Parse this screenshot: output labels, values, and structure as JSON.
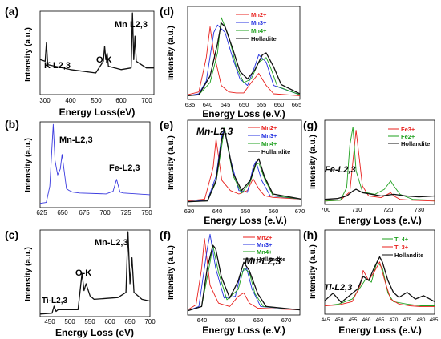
{
  "panels": [
    {
      "letter": "(a)",
      "xlabel": "Energy Loss(eV)",
      "ylabel": "Intensity (a.u.)",
      "ticks": [
        "300",
        "400",
        "500",
        "600",
        "700"
      ],
      "annotations": [
        "K L2,3",
        "O K",
        "Mn L2,3"
      ],
      "legend": []
    },
    {
      "letter": "(b)",
      "xlabel": "",
      "ylabel": "Intensity (a.u.)",
      "ticks": [
        "625",
        "650",
        "675",
        "700",
        "725",
        "750"
      ],
      "annotations": [
        "Mn-L2,3",
        "Fe-L2,3"
      ],
      "legend": []
    },
    {
      "letter": "(c)",
      "xlabel": "Energy Loss (eV)",
      "ylabel": "Intensity (a.u.)",
      "ticks": [
        "450",
        "500",
        "550",
        "600",
        "650",
        "700"
      ],
      "annotations": [
        "Ti-L2,3",
        "O-K",
        "Mn-L2,3"
      ],
      "legend": []
    },
    {
      "letter": "(d)",
      "xlabel": "Energy Loss (e.V.)",
      "ylabel": "Intensity (a.u.)",
      "ticks": [
        "635",
        "640",
        "645",
        "650",
        "655",
        "660",
        "665"
      ],
      "annotations": [],
      "legend": [
        "Mn2+",
        "Mn3+",
        "Mn4+",
        "Holladite"
      ]
    },
    {
      "letter": "(e)",
      "xlabel": "Energy Loss (e.V.)",
      "ylabel": "Intensity (a.u.)",
      "ticks": [
        "630",
        "640",
        "650",
        "660",
        "670"
      ],
      "annotations": [
        "Mn-L2,3"
      ],
      "legend": [
        "Mn2+",
        "Mn3+",
        "Mn4+",
        "Hollandite"
      ]
    },
    {
      "letter": "(f)",
      "xlabel": "Energy Loss (e.V.)",
      "ylabel": "Intensity (a.u.)",
      "ticks": [
        "640",
        "650",
        "660",
        "670"
      ],
      "annotations": [
        "Mn-L2,3"
      ],
      "legend": [
        "Mn2+",
        "Mn3+",
        "Mn4+",
        "Hollandite"
      ]
    },
    {
      "letter": "(g)",
      "xlabel": "Energy Loss (e.V.)",
      "ylabel": "Intensity (a.u.)",
      "ticks": [
        "700",
        "710",
        "720",
        "730"
      ],
      "annotations": [
        "Fe-L2,3"
      ],
      "legend": [
        "Fe3+",
        "Fe2+",
        "Hollandite"
      ]
    },
    {
      "letter": "(h)",
      "xlabel": "Energy Loss (e.V.)",
      "ylabel": "Intensity (a.u.)",
      "ticks": [
        "445",
        "450",
        "455",
        "460",
        "465",
        "470",
        "475",
        "480",
        "485"
      ],
      "annotations": [
        "Ti-L2,3"
      ],
      "legend": [
        "Ti 4+",
        "Ti 3+",
        "Hollandite"
      ]
    }
  ],
  "colors": {
    "red": "#e8201d",
    "blue": "#2431e0",
    "green": "#1ea01e",
    "black": "#111111",
    "bluePanel": "#3a3adf"
  },
  "chart_data": [
    {
      "type": "line",
      "panel": "(a)",
      "xlabel": "Energy Loss(eV)",
      "ylabel": "Intensity (a.u.)",
      "xlim": [
        280,
        730
      ],
      "series": [
        {
          "color": "black",
          "x": [
            280,
            300,
            305,
            310,
            400,
            500,
            530,
            535,
            540,
            545,
            550,
            600,
            640,
            645,
            650,
            655,
            660,
            700,
            730
          ],
          "y": [
            0.42,
            0.4,
            0.62,
            0.36,
            0.3,
            0.26,
            0.4,
            0.58,
            0.42,
            0.5,
            0.34,
            0.3,
            0.32,
            0.98,
            0.42,
            0.7,
            0.4,
            0.32,
            0.32
          ]
        }
      ]
    },
    {
      "type": "line",
      "panel": "(b)",
      "xlabel": "",
      "ylabel": "Intensity (a.u.)",
      "xlim": [
        625,
        750
      ],
      "series": [
        {
          "color": "bluePanel",
          "x": [
            625,
            632,
            636,
            640,
            642,
            645,
            648,
            650,
            655,
            658,
            662,
            670,
            700,
            708,
            712,
            716,
            720,
            750
          ],
          "y": [
            0.05,
            0.06,
            0.25,
            0.97,
            0.55,
            0.38,
            0.45,
            0.62,
            0.22,
            0.2,
            0.18,
            0.17,
            0.16,
            0.19,
            0.33,
            0.18,
            0.17,
            0.15
          ]
        }
      ]
    },
    {
      "type": "line",
      "panel": "(c)",
      "xlabel": "Energy Loss (eV)",
      "ylabel": "Intensity (a.u.)",
      "xlim": [
        425,
        700
      ],
      "series": [
        {
          "color": "black",
          "x": [
            425,
            455,
            460,
            465,
            470,
            520,
            530,
            535,
            540,
            550,
            560,
            620,
            640,
            645,
            650,
            655,
            660,
            680,
            700
          ],
          "y": [
            0.03,
            0.04,
            0.12,
            0.06,
            0.08,
            0.08,
            0.5,
            0.3,
            0.38,
            0.24,
            0.2,
            0.22,
            0.28,
            0.98,
            0.38,
            0.68,
            0.28,
            0.2,
            0.18
          ]
        }
      ]
    },
    {
      "type": "line",
      "panel": "(d)",
      "xlabel": "Energy Loss (e.V.)",
      "ylabel": "Intensity (a.u.)",
      "xlim": [
        635,
        665
      ],
      "series": [
        {
          "name": "Mn2+",
          "color": "red",
          "x": [
            635,
            638,
            640,
            641,
            642,
            644,
            646,
            648,
            650,
            652,
            654,
            656,
            658,
            665
          ],
          "y": [
            0.05,
            0.08,
            0.45,
            0.78,
            0.5,
            0.15,
            0.08,
            0.07,
            0.07,
            0.18,
            0.28,
            0.15,
            0.06,
            0.04
          ]
        },
        {
          "name": "Mn3+",
          "color": "blue",
          "x": [
            635,
            638,
            640,
            642,
            643,
            645,
            647,
            649,
            651,
            653,
            654,
            656,
            658,
            665
          ],
          "y": [
            0.04,
            0.06,
            0.2,
            0.72,
            0.8,
            0.72,
            0.45,
            0.22,
            0.15,
            0.36,
            0.48,
            0.4,
            0.15,
            0.05
          ]
        },
        {
          "name": "Mn4+",
          "color": "green",
          "x": [
            635,
            638,
            641,
            643,
            644,
            646,
            648,
            650,
            652,
            654,
            656,
            657,
            659,
            665
          ],
          "y": [
            0.04,
            0.05,
            0.18,
            0.5,
            0.88,
            0.68,
            0.35,
            0.18,
            0.22,
            0.4,
            0.45,
            0.36,
            0.14,
            0.05
          ]
        },
        {
          "name": "Holladite",
          "color": "black",
          "x": [
            635,
            638,
            641,
            643,
            644,
            645,
            647,
            649,
            651,
            653,
            655,
            656,
            658,
            660,
            665
          ],
          "y": [
            0.04,
            0.05,
            0.25,
            0.6,
            0.82,
            0.78,
            0.55,
            0.3,
            0.22,
            0.32,
            0.48,
            0.5,
            0.35,
            0.16,
            0.06
          ]
        }
      ]
    },
    {
      "type": "line",
      "panel": "(e)",
      "xlabel": "Energy Loss (e.V.)",
      "ylabel": "Intensity (a.u.)",
      "xlim": [
        630,
        670
      ],
      "series": [
        {
          "name": "Mn2+",
          "color": "red",
          "x": [
            630,
            636,
            639,
            640,
            642,
            645,
            648,
            651,
            653,
            655,
            657,
            660,
            670
          ],
          "y": [
            0.06,
            0.08,
            0.45,
            0.78,
            0.3,
            0.18,
            0.14,
            0.18,
            0.32,
            0.2,
            0.12,
            0.1,
            0.08
          ]
        },
        {
          "name": "Mn3+",
          "color": "blue",
          "x": [
            630,
            637,
            640,
            642,
            643,
            645,
            648,
            651,
            653,
            654,
            656,
            659,
            670
          ],
          "y": [
            0.05,
            0.07,
            0.35,
            0.82,
            0.9,
            0.55,
            0.18,
            0.16,
            0.45,
            0.52,
            0.3,
            0.12,
            0.08
          ]
        },
        {
          "name": "Mn4+",
          "color": "green",
          "x": [
            630,
            637,
            640,
            642,
            643,
            644,
            646,
            649,
            652,
            654,
            655,
            657,
            660,
            670
          ],
          "y": [
            0.05,
            0.06,
            0.28,
            0.7,
            0.92,
            0.7,
            0.35,
            0.15,
            0.28,
            0.48,
            0.5,
            0.32,
            0.12,
            0.08
          ]
        },
        {
          "name": "Hollandite",
          "color": "black",
          "x": [
            630,
            637,
            640,
            642,
            643,
            644,
            646,
            649,
            652,
            654,
            655,
            657,
            660,
            670
          ],
          "y": [
            0.05,
            0.06,
            0.3,
            0.78,
            0.88,
            0.72,
            0.38,
            0.18,
            0.3,
            0.5,
            0.55,
            0.34,
            0.14,
            0.08
          ]
        }
      ]
    },
    {
      "type": "line",
      "panel": "(f)",
      "xlabel": "Energy Loss (e.V.)",
      "ylabel": "Intensity (a.u.)",
      "xlim": [
        635,
        675
      ],
      "series": [
        {
          "name": "Mn2+",
          "color": "red",
          "x": [
            635,
            638,
            640,
            641,
            643,
            646,
            650,
            653,
            655,
            657,
            660,
            675
          ],
          "y": [
            0.06,
            0.12,
            0.55,
            0.9,
            0.35,
            0.14,
            0.1,
            0.22,
            0.26,
            0.14,
            0.08,
            0.06
          ]
        },
        {
          "name": "Mn3+",
          "color": "blue",
          "x": [
            635,
            639,
            642,
            643,
            645,
            648,
            652,
            654,
            656,
            658,
            661,
            675
          ],
          "y": [
            0.05,
            0.1,
            0.78,
            0.95,
            0.55,
            0.2,
            0.22,
            0.5,
            0.55,
            0.3,
            0.1,
            0.06
          ]
        },
        {
          "name": "Mn4+",
          "color": "green",
          "x": [
            635,
            640,
            643,
            644,
            646,
            649,
            653,
            655,
            657,
            659,
            662,
            675
          ],
          "y": [
            0.05,
            0.1,
            0.62,
            0.82,
            0.5,
            0.18,
            0.3,
            0.55,
            0.5,
            0.25,
            0.1,
            0.06
          ]
        },
        {
          "name": "Hollandite",
          "color": "black",
          "x": [
            635,
            640,
            642,
            644,
            645,
            647,
            650,
            653,
            655,
            657,
            660,
            663,
            675
          ],
          "y": [
            0.05,
            0.1,
            0.55,
            0.82,
            0.78,
            0.45,
            0.2,
            0.4,
            0.62,
            0.52,
            0.25,
            0.1,
            0.06
          ]
        }
      ]
    },
    {
      "type": "line",
      "panel": "(g)",
      "xlabel": "Energy Loss (e.V.)",
      "ylabel": "Intensity (a.u.)",
      "xlim": [
        700,
        735
      ],
      "series": [
        {
          "name": "Fe3+",
          "color": "red",
          "x": [
            700,
            705,
            708,
            710,
            711,
            712,
            714,
            718,
            721,
            722,
            724,
            728,
            735
          ],
          "y": [
            0.04,
            0.05,
            0.15,
            0.88,
            0.55,
            0.22,
            0.1,
            0.08,
            0.14,
            0.1,
            0.06,
            0.05,
            0.04
          ]
        },
        {
          "name": "Fe2+",
          "color": "green",
          "x": [
            700,
            705,
            707,
            708,
            709,
            710,
            712,
            716,
            719,
            721,
            722,
            724,
            728,
            735
          ],
          "y": [
            0.04,
            0.05,
            0.2,
            0.7,
            0.92,
            0.4,
            0.15,
            0.12,
            0.18,
            0.28,
            0.22,
            0.12,
            0.06,
            0.05
          ]
        },
        {
          "name": "Hollandite",
          "color": "black",
          "x": [
            700,
            704,
            707,
            709,
            710,
            712,
            715,
            718,
            722,
            726,
            730,
            735
          ],
          "y": [
            0.06,
            0.07,
            0.1,
            0.16,
            0.18,
            0.14,
            0.12,
            0.1,
            0.12,
            0.1,
            0.09,
            0.1
          ]
        }
      ]
    },
    {
      "type": "line",
      "panel": "(h)",
      "xlabel": "Energy Loss (e.V.)",
      "ylabel": "Intensity (a.u.)",
      "xlim": [
        445,
        485
      ],
      "series": [
        {
          "name": "Ti 4+",
          "color": "green",
          "x": [
            445,
            450,
            455,
            458,
            460,
            462,
            464,
            466,
            468,
            470,
            475,
            480,
            485
          ],
          "y": [
            0.1,
            0.12,
            0.18,
            0.32,
            0.42,
            0.38,
            0.62,
            0.55,
            0.25,
            0.15,
            0.12,
            0.1,
            0.1
          ]
        },
        {
          "name": "Ti 3+",
          "color": "red",
          "x": [
            445,
            450,
            455,
            458,
            459,
            461,
            463,
            465,
            467,
            469,
            472,
            476,
            480,
            485
          ],
          "y": [
            0.1,
            0.11,
            0.15,
            0.35,
            0.52,
            0.4,
            0.5,
            0.62,
            0.38,
            0.18,
            0.12,
            0.1,
            0.09,
            0.09
          ]
        },
        {
          "name": "Hollandite",
          "color": "black",
          "x": [
            445,
            448,
            451,
            454,
            457,
            459,
            461,
            463,
            465,
            466,
            468,
            470,
            472,
            475,
            478,
            481,
            485
          ],
          "y": [
            0.16,
            0.25,
            0.14,
            0.22,
            0.3,
            0.45,
            0.4,
            0.55,
            0.68,
            0.62,
            0.4,
            0.26,
            0.2,
            0.26,
            0.18,
            0.22,
            0.15
          ]
        }
      ]
    }
  ]
}
